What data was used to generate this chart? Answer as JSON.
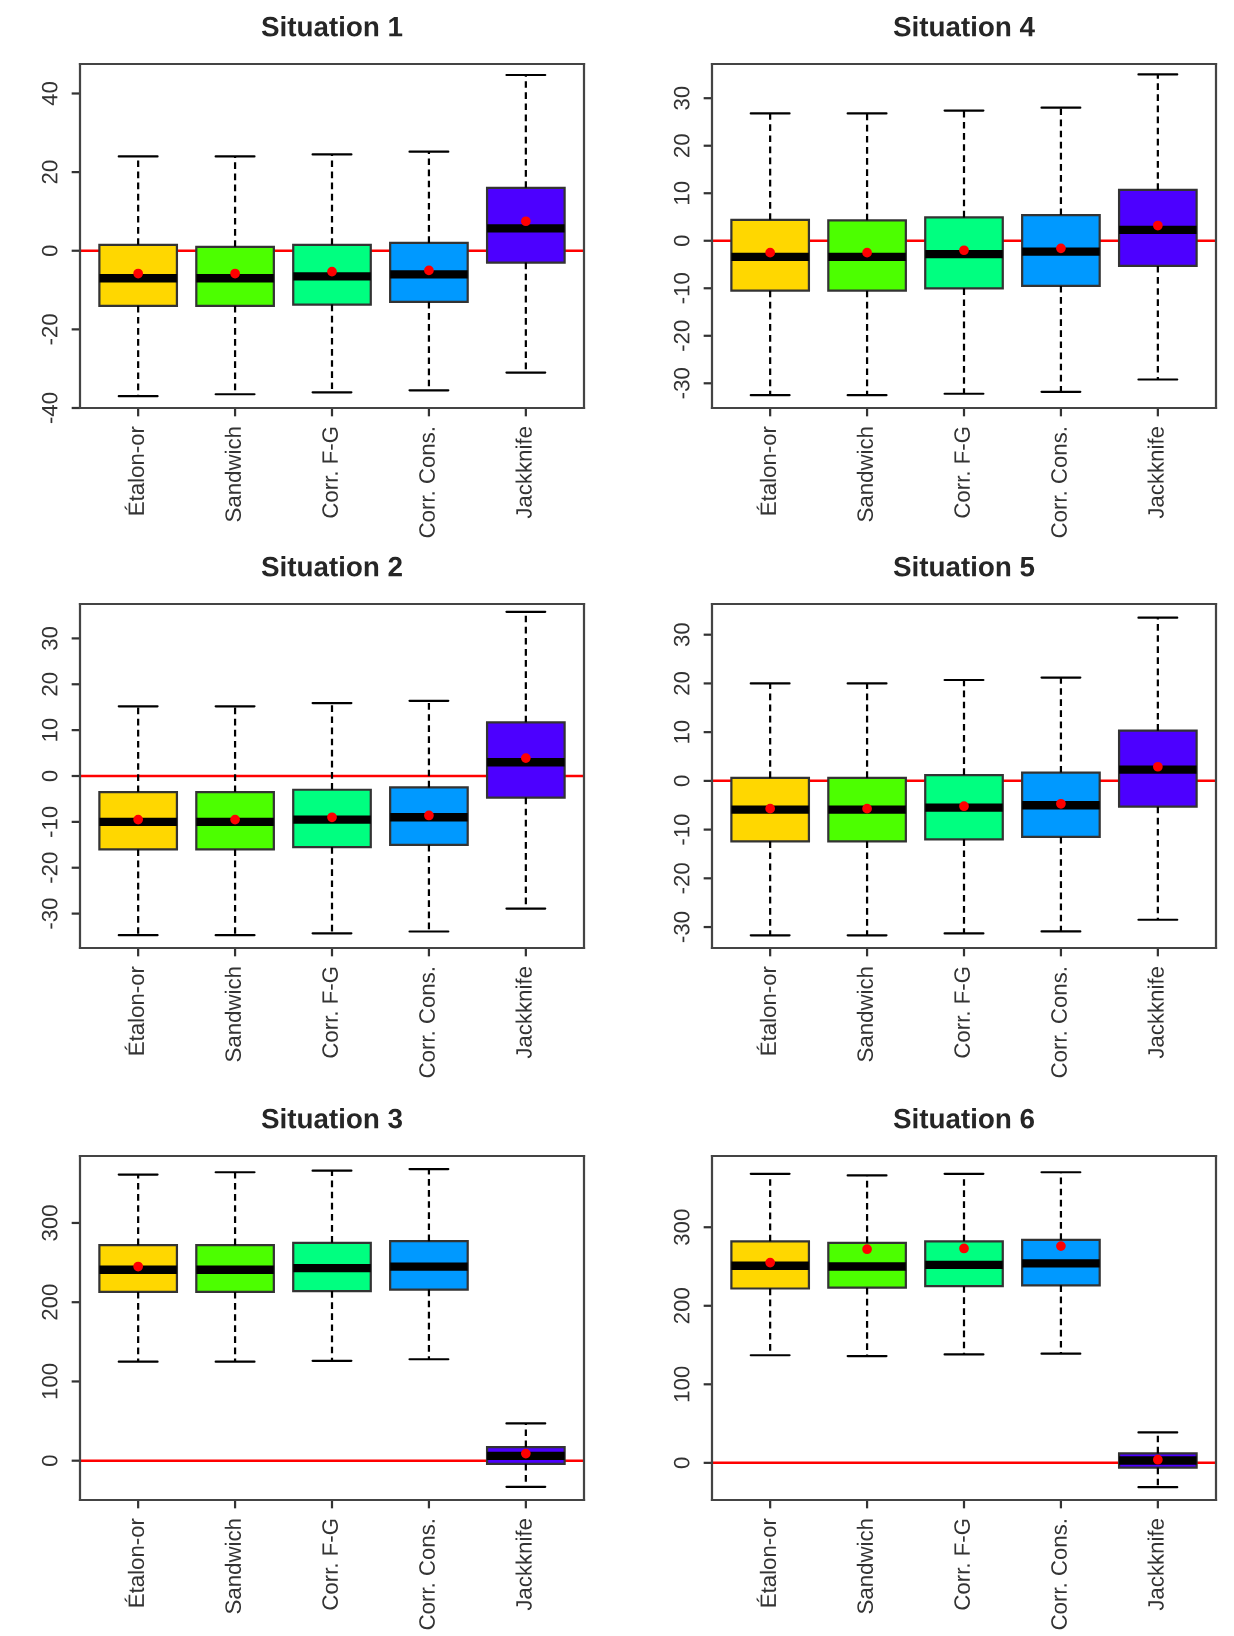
{
  "chart_data": [
    {
      "type": "box",
      "title": "Situation 1",
      "categories": [
        "Étalon-or",
        "Sandwich",
        "Corr. F-G",
        "Corr. Cons.",
        "Jackknife"
      ],
      "colors": [
        "#ffd700",
        "#4cff00",
        "#00ff80",
        "#0099ff",
        "#4c00ff"
      ],
      "ylim": [
        -40,
        47.5
      ],
      "yticks": [
        -40,
        -20,
        0,
        20,
        40
      ],
      "grid": false,
      "ref_lines": [
        {
          "axis": "y",
          "value": 0,
          "color": "#ff0000"
        }
      ],
      "boxes": [
        {
          "low": -37,
          "q1": -14,
          "median": -7,
          "q3": 1.5,
          "high": 24,
          "mean": -5.8
        },
        {
          "low": -36.5,
          "q1": -14,
          "median": -7,
          "q3": 1,
          "high": 24,
          "mean": -5.8
        },
        {
          "low": -36,
          "q1": -13.7,
          "median": -6.5,
          "q3": 1.5,
          "high": 24.5,
          "mean": -5.3
        },
        {
          "low": -35.5,
          "q1": -13,
          "median": -6,
          "q3": 2,
          "high": 25.2,
          "mean": -5
        },
        {
          "low": -31,
          "q1": -3,
          "median": 5.7,
          "q3": 16,
          "high": 44.7,
          "mean": 7.5
        }
      ]
    },
    {
      "type": "box",
      "title": "Situation 4",
      "categories": [
        "Étalon-or",
        "Sandwich",
        "Corr. F-G",
        "Corr. Cons.",
        "Jackknife"
      ],
      "colors": [
        "#ffd700",
        "#4cff00",
        "#00ff80",
        "#0099ff",
        "#4c00ff"
      ],
      "ylim": [
        -35.2,
        37.2
      ],
      "yticks": [
        -30,
        -20,
        -10,
        0,
        10,
        20,
        30
      ],
      "grid": false,
      "ref_lines": [
        {
          "axis": "y",
          "value": 0,
          "color": "#ff0000"
        }
      ],
      "boxes": [
        {
          "low": -32.5,
          "q1": -10.5,
          "median": -3.4,
          "q3": 4.4,
          "high": 26.8,
          "mean": -2.5
        },
        {
          "low": -32.5,
          "q1": -10.5,
          "median": -3.4,
          "q3": 4.3,
          "high": 26.8,
          "mean": -2.5
        },
        {
          "low": -32.2,
          "q1": -10,
          "median": -2.8,
          "q3": 4.9,
          "high": 27.4,
          "mean": -2
        },
        {
          "low": -31.8,
          "q1": -9.5,
          "median": -2.3,
          "q3": 5.4,
          "high": 28,
          "mean": -1.6
        },
        {
          "low": -29.2,
          "q1": -5.3,
          "median": 2.3,
          "q3": 10.7,
          "high": 35,
          "mean": 3.2
        }
      ]
    },
    {
      "type": "box",
      "title": "Situation 2",
      "categories": [
        "Étalon-or",
        "Sandwich",
        "Corr. F-G",
        "Corr. Cons.",
        "Jackknife"
      ],
      "colors": [
        "#ffd700",
        "#4cff00",
        "#00ff80",
        "#0099ff",
        "#4c00ff"
      ],
      "ylim": [
        -37.5,
        37.5
      ],
      "yticks": [
        -30,
        -20,
        -10,
        0,
        10,
        20,
        30
      ],
      "grid": false,
      "ref_lines": [
        {
          "axis": "y",
          "value": 0,
          "color": "#ff0000"
        }
      ],
      "boxes": [
        {
          "low": -34.7,
          "q1": -16,
          "median": -10,
          "q3": -3.5,
          "high": 15.2,
          "mean": -9.5
        },
        {
          "low": -34.7,
          "q1": -16,
          "median": -10,
          "q3": -3.5,
          "high": 15.2,
          "mean": -9.5
        },
        {
          "low": -34.3,
          "q1": -15.5,
          "median": -9.5,
          "q3": -3,
          "high": 15.9,
          "mean": -9
        },
        {
          "low": -33.9,
          "q1": -15,
          "median": -9,
          "q3": -2.5,
          "high": 16.4,
          "mean": -8.6
        },
        {
          "low": -28.9,
          "q1": -4.7,
          "median": 3,
          "q3": 11.7,
          "high": 35.8,
          "mean": 3.9
        }
      ]
    },
    {
      "type": "box",
      "title": "Situation 5",
      "categories": [
        "Étalon-or",
        "Sandwich",
        "Corr. F-G",
        "Corr. Cons.",
        "Jackknife"
      ],
      "colors": [
        "#ffd700",
        "#4cff00",
        "#00ff80",
        "#0099ff",
        "#4c00ff"
      ],
      "ylim": [
        -34.3,
        36.3
      ],
      "yticks": [
        -30,
        -20,
        -10,
        0,
        10,
        20,
        30
      ],
      "grid": false,
      "ref_lines": [
        {
          "axis": "y",
          "value": 0,
          "color": "#ff0000"
        }
      ],
      "boxes": [
        {
          "low": -31.7,
          "q1": -12.4,
          "median": -5.9,
          "q3": 0.6,
          "high": 20,
          "mean": -5.7
        },
        {
          "low": -31.7,
          "q1": -12.4,
          "median": -5.9,
          "q3": 0.6,
          "high": 20,
          "mean": -5.7
        },
        {
          "low": -31.3,
          "q1": -12,
          "median": -5.5,
          "q3": 1.2,
          "high": 20.7,
          "mean": -5.2
        },
        {
          "low": -30.9,
          "q1": -11.5,
          "median": -5,
          "q3": 1.7,
          "high": 21.2,
          "mean": -4.7
        },
        {
          "low": -28.5,
          "q1": -5.3,
          "median": 2.3,
          "q3": 10.3,
          "high": 33.5,
          "mean": 2.9
        }
      ]
    },
    {
      "type": "box",
      "title": "Situation 3",
      "categories": [
        "Étalon-or",
        "Sandwich",
        "Corr. F-G",
        "Corr. Cons.",
        "Jackknife"
      ],
      "colors": [
        "#ffd700",
        "#4cff00",
        "#00ff80",
        "#0099ff",
        "#4c00ff"
      ],
      "ylim": [
        -49.6,
        384.5
      ],
      "yticks": [
        0,
        100,
        200,
        300
      ],
      "grid": false,
      "ref_lines": [
        {
          "axis": "y",
          "value": 0,
          "color": "#ff0000"
        }
      ],
      "boxes": [
        {
          "low": 125,
          "q1": 213,
          "median": 241,
          "q3": 272,
          "high": 361,
          "mean": 245
        },
        {
          "low": 125,
          "q1": 213,
          "median": 241,
          "q3": 272,
          "high": 364
        },
        {
          "low": 126,
          "q1": 214,
          "median": 243,
          "q3": 275,
          "high": 366
        },
        {
          "low": 128,
          "q1": 216,
          "median": 245,
          "q3": 277,
          "high": 368
        },
        {
          "low": -33,
          "q1": -4,
          "median": 6,
          "q3": 17,
          "high": 47,
          "mean": 9
        }
      ]
    },
    {
      "type": "box",
      "title": "Situation 6",
      "categories": [
        "Étalon-or",
        "Sandwich",
        "Corr. F-G",
        "Corr. Cons.",
        "Jackknife"
      ],
      "colors": [
        "#ffd700",
        "#4cff00",
        "#00ff80",
        "#0099ff",
        "#4c00ff"
      ],
      "ylim": [
        -47.3,
        390.7
      ],
      "yticks": [
        0,
        100,
        200,
        300
      ],
      "grid": false,
      "ref_lines": [
        {
          "axis": "y",
          "value": 0,
          "color": "#ff0000"
        }
      ],
      "boxes": [
        {
          "low": 137,
          "q1": 222,
          "median": 251,
          "q3": 282,
          "high": 368,
          "mean": 255
        },
        {
          "low": 136,
          "q1": 223,
          "median": 250,
          "q3": 280,
          "high": 366,
          "mean": 272
        },
        {
          "low": 138,
          "q1": 225,
          "median": 252,
          "q3": 282,
          "high": 368,
          "mean": 273
        },
        {
          "low": 139,
          "q1": 226,
          "median": 254,
          "q3": 284,
          "high": 370,
          "mean": 276
        },
        {
          "low": -31,
          "q1": -6,
          "median": 3,
          "q3": 12,
          "high": 38.8,
          "mean": 4
        }
      ]
    }
  ]
}
